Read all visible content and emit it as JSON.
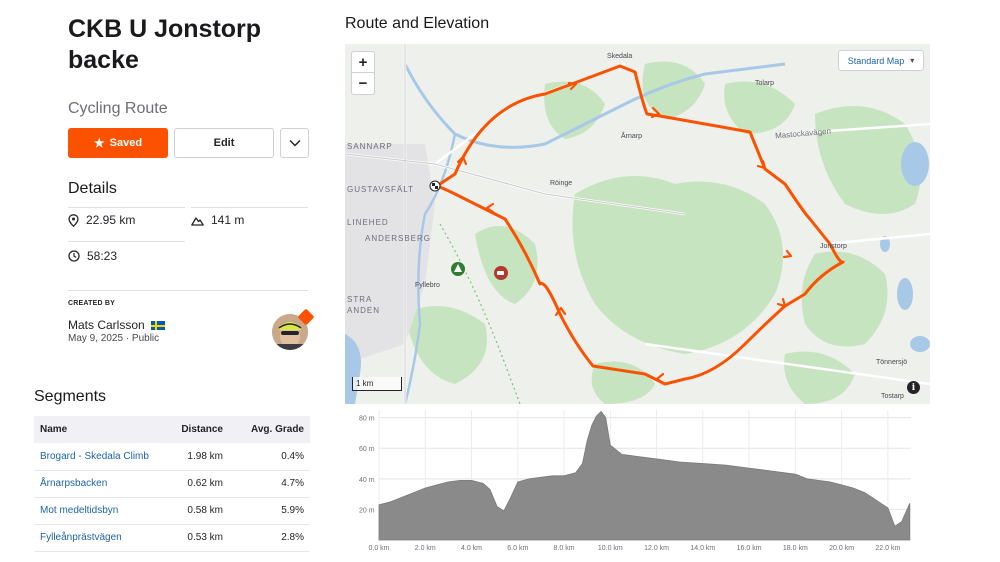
{
  "route": {
    "title": "CKB U Jonstorp backe",
    "type": "Cycling Route"
  },
  "actions": {
    "saved_label": "Saved",
    "edit_label": "Edit",
    "more_icon": "chevron-down-icon"
  },
  "details": {
    "heading": "Details",
    "distance": "22.95 km",
    "elevation": "141 m",
    "time": "58:23"
  },
  "creator": {
    "label": "CREATED BY",
    "name": "Mats Carlsson",
    "date": "May 9, 2025",
    "visibility": "Public",
    "meta": "May 9, 2025 · Public"
  },
  "segments": {
    "heading": "Segments",
    "columns": [
      "Name",
      "Distance",
      "Avg. Grade"
    ],
    "rows": [
      {
        "name": "Brogard - Skedala Climb",
        "distance": "1.98 km",
        "grade": "0.4%"
      },
      {
        "name": "Årnarpsbacken",
        "distance": "0.62 km",
        "grade": "4.7%"
      },
      {
        "name": "Mot medeltidsbyn",
        "distance": "0.58 km",
        "grade": "5.9%"
      },
      {
        "name": "Fylleånprästvägen",
        "distance": "0.53 km",
        "grade": "2.8%"
      }
    ]
  },
  "map": {
    "heading": "Route and Elevation",
    "zoom_in": "+",
    "zoom_out": "−",
    "style_label": "Standard Map",
    "scale_label": "1 km",
    "info": "i",
    "route_color": "#fc5200",
    "places": {
      "skedala": "Skedala",
      "tolarp": "Tolarp",
      "arnarp": "Årnarp",
      "mastockavagen": "Mastockavägen",
      "sannarp": "SANNARP",
      "gustavsfalt": "GUSTAVSFÄLT",
      "roinge": "Röinge",
      "linehed": "LINEHED",
      "andersberg": "ANDERSBERG",
      "jonstorp": "Jonstorp",
      "fyllebro": "Fyllebro",
      "stra": "STRA",
      "anden": "ANDEN",
      "tonnersjo": "Tönnersjö",
      "tostarp": "Tostarp"
    }
  },
  "chart_data": {
    "type": "area",
    "x_unit": "km",
    "y_unit": "m",
    "xlim": [
      0,
      23
    ],
    "ylim": [
      0,
      85
    ],
    "x_ticks": [
      "0.0 km",
      "2.0 km",
      "4.0 km",
      "6.0 km",
      "8.0 km",
      "10.0 km",
      "12.0 km",
      "14.0 km",
      "16.0 km",
      "18.0 km",
      "20.0 km",
      "22.0 km"
    ],
    "y_ticks": [
      "20 m",
      "40 m",
      "60 m",
      "80 m"
    ],
    "grid": true,
    "fill_color": "#8a8a8a",
    "x": [
      0,
      0.5,
      1,
      1.5,
      2,
      2.5,
      3,
      3.5,
      4,
      4.5,
      4.8,
      5.1,
      5.4,
      5.7,
      6,
      6.5,
      7,
      7.5,
      8,
      8.5,
      8.8,
      9,
      9.2,
      9.4,
      9.6,
      9.8,
      10,
      10.5,
      11,
      12,
      13,
      14,
      15,
      16,
      17,
      17.5,
      18,
      18.5,
      19,
      19.5,
      20,
      20.5,
      21,
      21.3,
      21.6,
      22,
      22.3,
      22.6,
      22.95
    ],
    "y": [
      23,
      25,
      28,
      31,
      34,
      36,
      38,
      39,
      39,
      37,
      33,
      22,
      19,
      28,
      38,
      40,
      41,
      42,
      42,
      44,
      50,
      65,
      75,
      81,
      84,
      80,
      62,
      56,
      55,
      53,
      51,
      50,
      49,
      47,
      45,
      44,
      43,
      40,
      39,
      38,
      36,
      34,
      31,
      28,
      25,
      21,
      9,
      12,
      24
    ]
  }
}
